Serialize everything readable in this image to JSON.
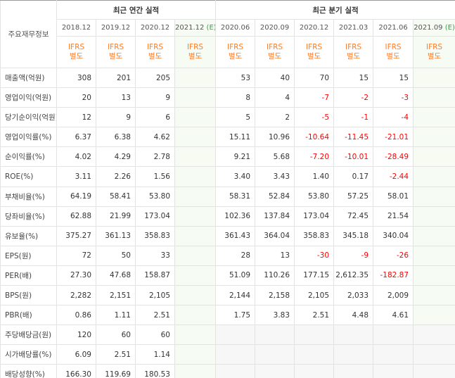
{
  "corner_label": "주요재무정보",
  "annual_header": "최근 연간 실적",
  "quarter_header": "최근 분기 실적",
  "basis_top": "IFRS",
  "basis_bottom": "별도",
  "annual_periods": [
    "2018.12",
    "2019.12",
    "2020.12",
    "2021.12"
  ],
  "annual_estimate_marker": "(E)",
  "quarter_periods": [
    "2020.06",
    "2020.09",
    "2020.12",
    "2021.03",
    "2021.06",
    "2021.09"
  ],
  "quarter_estimate_marker": "(E)",
  "rows": [
    {
      "label": "매출액(억원)",
      "annual": [
        "308",
        "201",
        "205",
        ""
      ],
      "quarter": [
        "53",
        "40",
        "70",
        "15",
        "15",
        ""
      ]
    },
    {
      "label": "영업이익(억원)",
      "annual": [
        "20",
        "13",
        "9",
        ""
      ],
      "quarter": [
        "8",
        "4",
        "-7",
        "-2",
        "-3",
        ""
      ]
    },
    {
      "label": "당기순이익(억원)",
      "annual": [
        "12",
        "9",
        "6",
        ""
      ],
      "quarter": [
        "5",
        "2",
        "-5",
        "-1",
        "-4",
        ""
      ]
    },
    {
      "label": "영업이익률(%)",
      "annual": [
        "6.37",
        "6.38",
        "4.62",
        ""
      ],
      "quarter": [
        "15.11",
        "10.96",
        "-10.64",
        "-11.45",
        "-21.01",
        ""
      ]
    },
    {
      "label": "순이익률(%)",
      "annual": [
        "4.02",
        "4.29",
        "2.78",
        ""
      ],
      "quarter": [
        "9.21",
        "5.68",
        "-7.20",
        "-10.01",
        "-28.49",
        ""
      ]
    },
    {
      "label": "ROE(%)",
      "annual": [
        "3.11",
        "2.26",
        "1.56",
        ""
      ],
      "quarter": [
        "3.40",
        "3.43",
        "1.40",
        "0.17",
        "-2.44",
        ""
      ]
    },
    {
      "label": "부채비율(%)",
      "annual": [
        "64.19",
        "58.41",
        "53.80",
        ""
      ],
      "quarter": [
        "58.31",
        "52.84",
        "53.80",
        "57.25",
        "58.01",
        ""
      ]
    },
    {
      "label": "당좌비율(%)",
      "annual": [
        "62.88",
        "21.99",
        "173.04",
        ""
      ],
      "quarter": [
        "102.36",
        "137.84",
        "173.04",
        "72.45",
        "21.54",
        ""
      ]
    },
    {
      "label": "유보율(%)",
      "annual": [
        "375.27",
        "361.13",
        "358.83",
        ""
      ],
      "quarter": [
        "361.43",
        "364.04",
        "358.83",
        "345.18",
        "340.04",
        ""
      ]
    },
    {
      "label": "EPS(원)",
      "annual": [
        "72",
        "50",
        "33",
        ""
      ],
      "quarter": [
        "28",
        "13",
        "-30",
        "-9",
        "-26",
        ""
      ]
    },
    {
      "label": "PER(배)",
      "annual": [
        "27.30",
        "47.68",
        "158.87",
        ""
      ],
      "quarter": [
        "51.09",
        "110.26",
        "177.15",
        "2,612.35",
        "-182.87",
        ""
      ]
    },
    {
      "label": "BPS(원)",
      "annual": [
        "2,282",
        "2,151",
        "2,105",
        ""
      ],
      "quarter": [
        "2,144",
        "2,158",
        "2,105",
        "2,033",
        "2,009",
        ""
      ]
    },
    {
      "label": "PBR(배)",
      "annual": [
        "0.86",
        "1.11",
        "2.51",
        ""
      ],
      "quarter": [
        "1.75",
        "3.83",
        "2.51",
        "4.48",
        "4.61",
        ""
      ]
    },
    {
      "label": "주당배당금(원)",
      "annual": [
        "120",
        "60",
        "60",
        ""
      ],
      "quarter": [
        "",
        "",
        "",
        "",
        "",
        ""
      ]
    },
    {
      "label": "시가배당률(%)",
      "annual": [
        "6.09",
        "2.51",
        "1.14",
        ""
      ],
      "quarter": [
        "",
        "",
        "",
        "",
        "",
        ""
      ]
    },
    {
      "label": "배당성향(%)",
      "annual": [
        "166.30",
        "119.69",
        "180.53",
        ""
      ],
      "quarter": [
        "",
        "",
        "",
        "",
        "",
        ""
      ]
    }
  ],
  "group_starts": [
    0,
    3,
    6,
    9,
    13
  ],
  "colors": {
    "negative": "#ff0000",
    "ifrs": "#ff7e29",
    "estimate": "#3aa04a"
  }
}
